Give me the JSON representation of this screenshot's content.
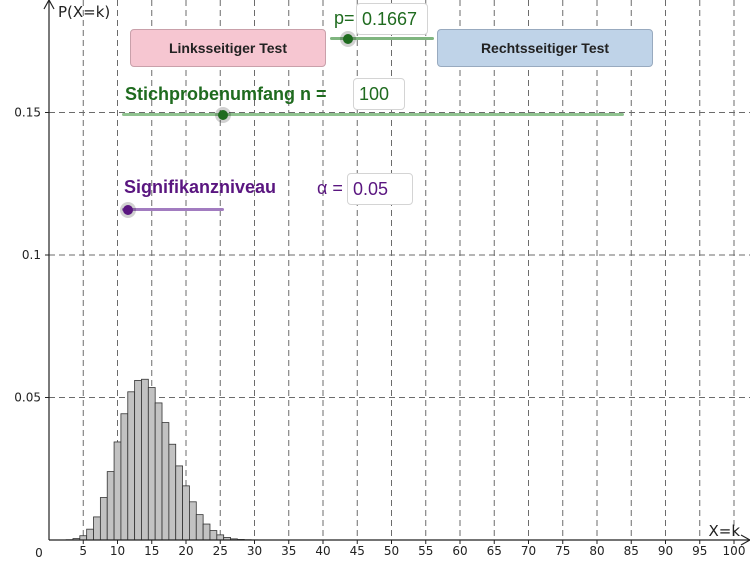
{
  "colors": {
    "bar_fill": "#c2c2c2",
    "bar_stroke": "#333333",
    "grid": "#6b6b6b",
    "green": "#1f6b1f",
    "purple": "#5a1680",
    "left_button": "#f6c6d1",
    "right_button": "#bfd3e8"
  },
  "buttons": {
    "left": "Linksseitiger Test",
    "right": "Rechtsseitiger Test"
  },
  "controls": {
    "p_label": "p=",
    "p_value": "0.1667",
    "n_label": "Stichprobenumfang n =",
    "n_value": "100",
    "alpha_title": "Signifikanzniveau",
    "alpha_label": "α =",
    "alpha_value": "0.05"
  },
  "chart_data": {
    "type": "bar",
    "title": "",
    "xlabel": "X=k",
    "ylabel": "P(X=k)",
    "xlim": [
      0,
      102
    ],
    "ylim": [
      0,
      0.19
    ],
    "grid": true,
    "x_ticks": [
      0,
      5,
      10,
      15,
      20,
      25,
      30,
      35,
      40,
      45,
      50,
      55,
      60,
      65,
      70,
      75,
      80,
      85,
      90,
      95,
      100
    ],
    "y_ticks": [
      0.05,
      0.1,
      0.15
    ],
    "y_tick_labels": [
      "0.05",
      "0.1",
      "0.15"
    ],
    "x": [
      3,
      4,
      5,
      6,
      7,
      8,
      9,
      10,
      11,
      12,
      13,
      14,
      15,
      16,
      17,
      18,
      19,
      20,
      21,
      22,
      23,
      24,
      25,
      26,
      27,
      28,
      29,
      30,
      31
    ],
    "values": [
      0.0001,
      0.0005,
      0.0015,
      0.0038,
      0.0081,
      0.0149,
      0.024,
      0.0344,
      0.0443,
      0.052,
      0.056,
      0.0564,
      0.0535,
      0.0481,
      0.0412,
      0.0336,
      0.026,
      0.019,
      0.0134,
      0.0089,
      0.0056,
      0.0033,
      0.0018,
      0.0009,
      0.0004,
      0.0002,
      0.0001,
      5e-05,
      2e-05
    ]
  }
}
